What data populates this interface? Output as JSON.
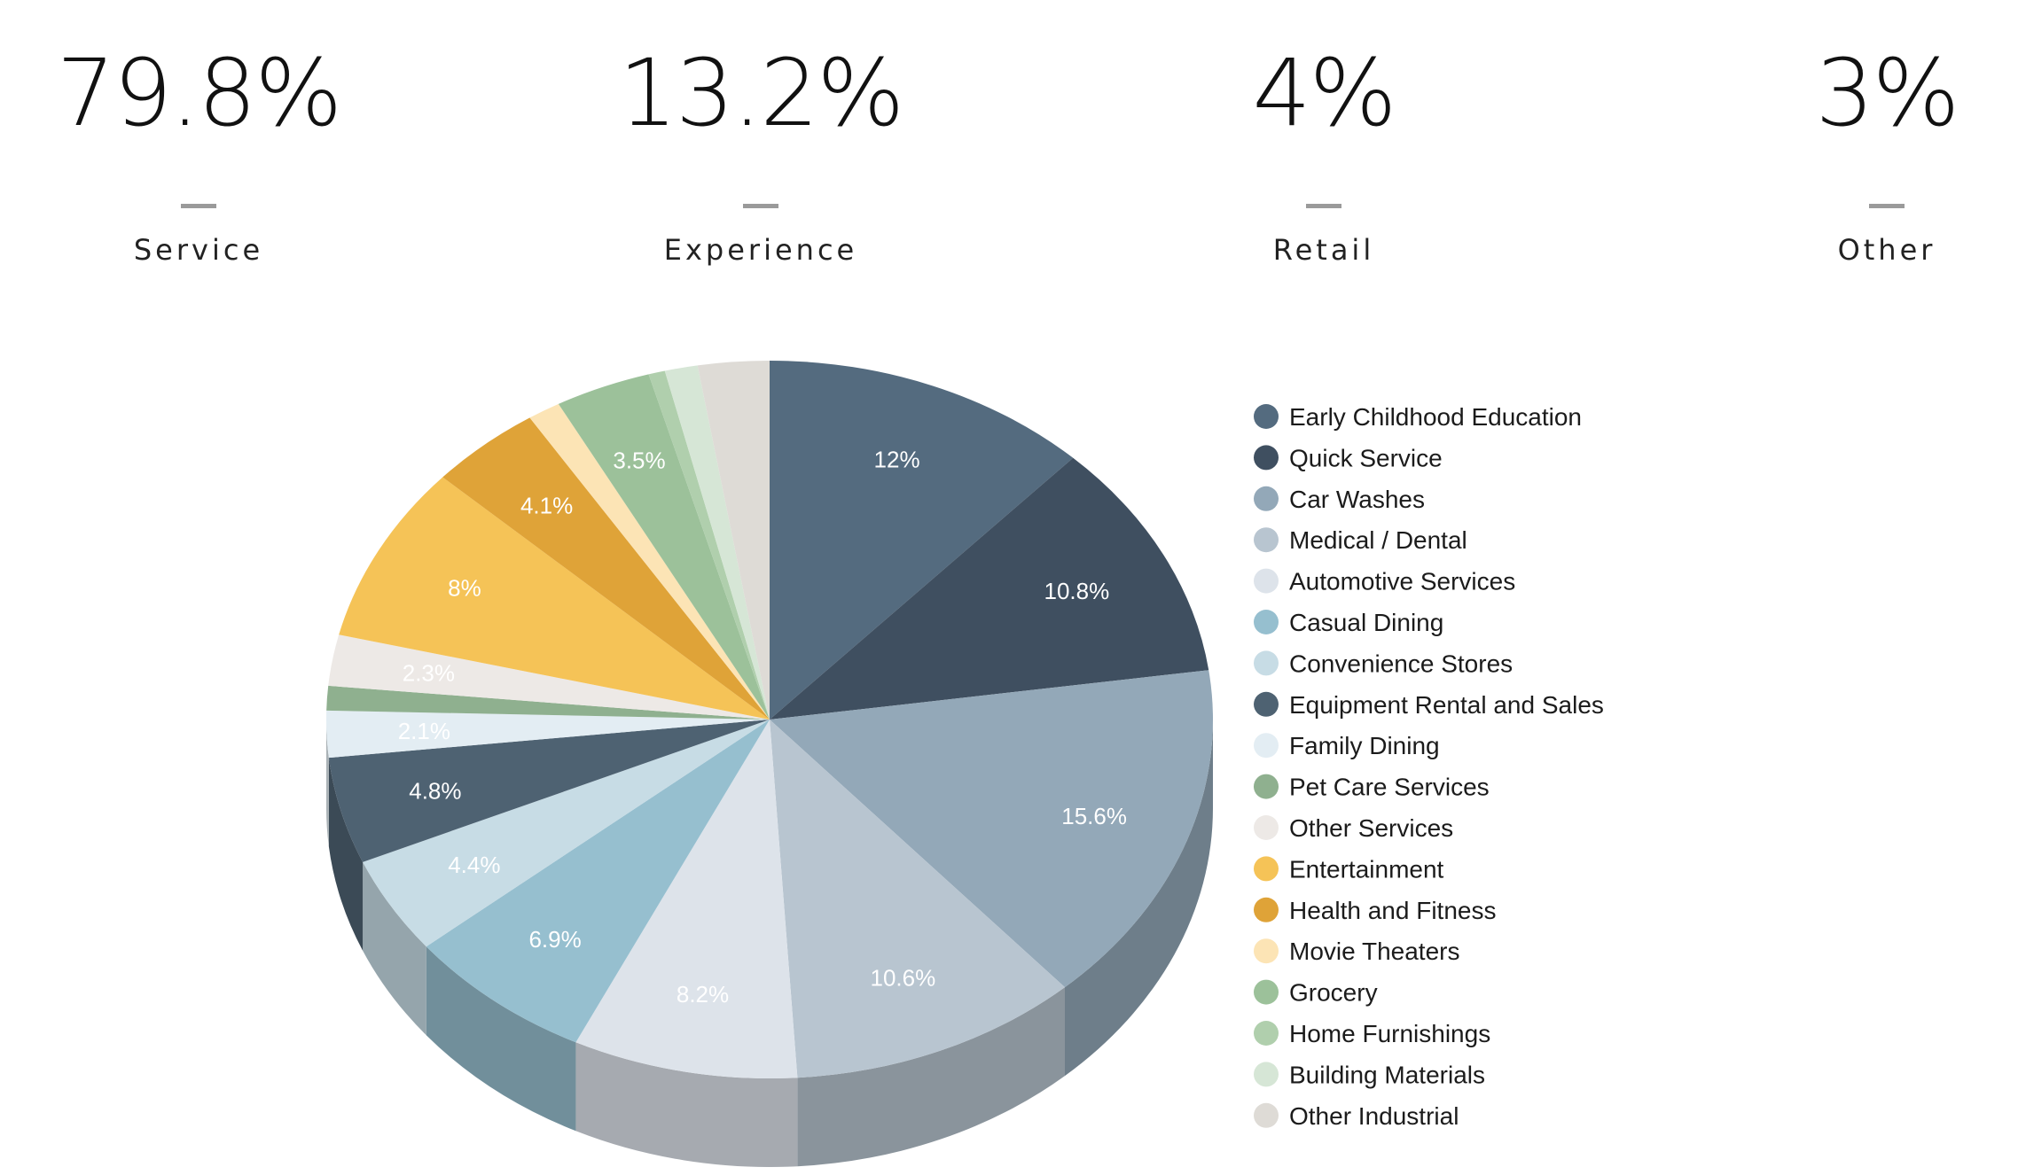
{
  "stats": [
    {
      "value": "79.8%",
      "label": "Service"
    },
    {
      "value": "13.2%",
      "label": "Experience"
    },
    {
      "value": "4%",
      "label": "Retail"
    },
    {
      "value": "3%",
      "label": "Other"
    }
  ],
  "chart_data": {
    "type": "pie",
    "title": "",
    "legend_position": "right",
    "slices": [
      {
        "name": "Early Childhood Education",
        "value": 12,
        "label": "12%",
        "color": "#546b7f"
      },
      {
        "name": "Quick Service",
        "value": 10.8,
        "label": "10.8%",
        "color": "#3f4f60"
      },
      {
        "name": "Car Washes",
        "value": 15.6,
        "label": "15.6%",
        "color": "#93a8b8"
      },
      {
        "name": "Medical / Dental",
        "value": 10.6,
        "label": "10.6%",
        "color": "#b8c5d0"
      },
      {
        "name": "Automotive Services",
        "value": 8.2,
        "label": "8.2%",
        "color": "#dde3ea"
      },
      {
        "name": "Casual Dining",
        "value": 6.9,
        "label": "6.9%",
        "color": "#96bfcf"
      },
      {
        "name": "Convenience Stores",
        "value": 4.4,
        "label": "4.4%",
        "color": "#c7dce5"
      },
      {
        "name": "Equipment Rental and Sales",
        "value": 4.8,
        "label": "4.8%",
        "color": "#4e6272"
      },
      {
        "name": "Family Dining",
        "value": 2.1,
        "label": "2.1%",
        "color": "#e3edf3"
      },
      {
        "name": "Pet Care Services",
        "value": 1.1,
        "label": "",
        "color": "#8fb08f"
      },
      {
        "name": "Other Services",
        "value": 2.3,
        "label": "2.3%",
        "color": "#ede9e6"
      },
      {
        "name": "Entertainment",
        "value": 8,
        "label": "8%",
        "color": "#f5c357"
      },
      {
        "name": "Health and Fitness",
        "value": 4.1,
        "label": "4.1%",
        "color": "#dfa338"
      },
      {
        "name": "Movie Theaters",
        "value": 1.2,
        "label": "",
        "color": "#fce4b5"
      },
      {
        "name": "Grocery",
        "value": 3.5,
        "label": "3.5%",
        "color": "#9cc19a"
      },
      {
        "name": "Home Furnishings",
        "value": 0.6,
        "label": "",
        "color": "#b0cfad"
      },
      {
        "name": "Building Materials",
        "value": 1.2,
        "label": "",
        "color": "#d6e6d6"
      },
      {
        "name": "Other Industrial",
        "value": 2.6,
        "label": "",
        "color": "#dedbd6"
      }
    ]
  }
}
